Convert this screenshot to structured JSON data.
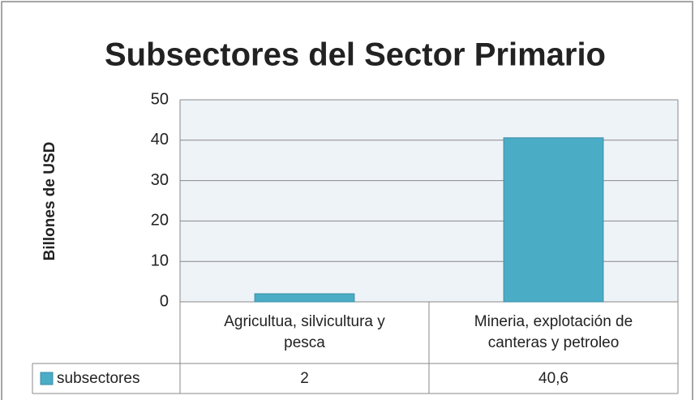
{
  "chart_data": {
    "type": "bar",
    "title": "Subsectores del Sector Primario",
    "y_label": "Billones de USD",
    "categories": [
      "Agricultua, silvicultura y pesca",
      "Mineria, explotación de canteras y petroleo"
    ],
    "series": [
      {
        "name": "subsectores",
        "color": "#4bacc6",
        "values": [
          2,
          40.6
        ],
        "value_labels": [
          "2",
          "40,6"
        ]
      }
    ],
    "ylim": [
      0,
      50
    ],
    "yticks": [
      0,
      10,
      20,
      30,
      40,
      50
    ],
    "grid": true,
    "legend": "data-table"
  }
}
